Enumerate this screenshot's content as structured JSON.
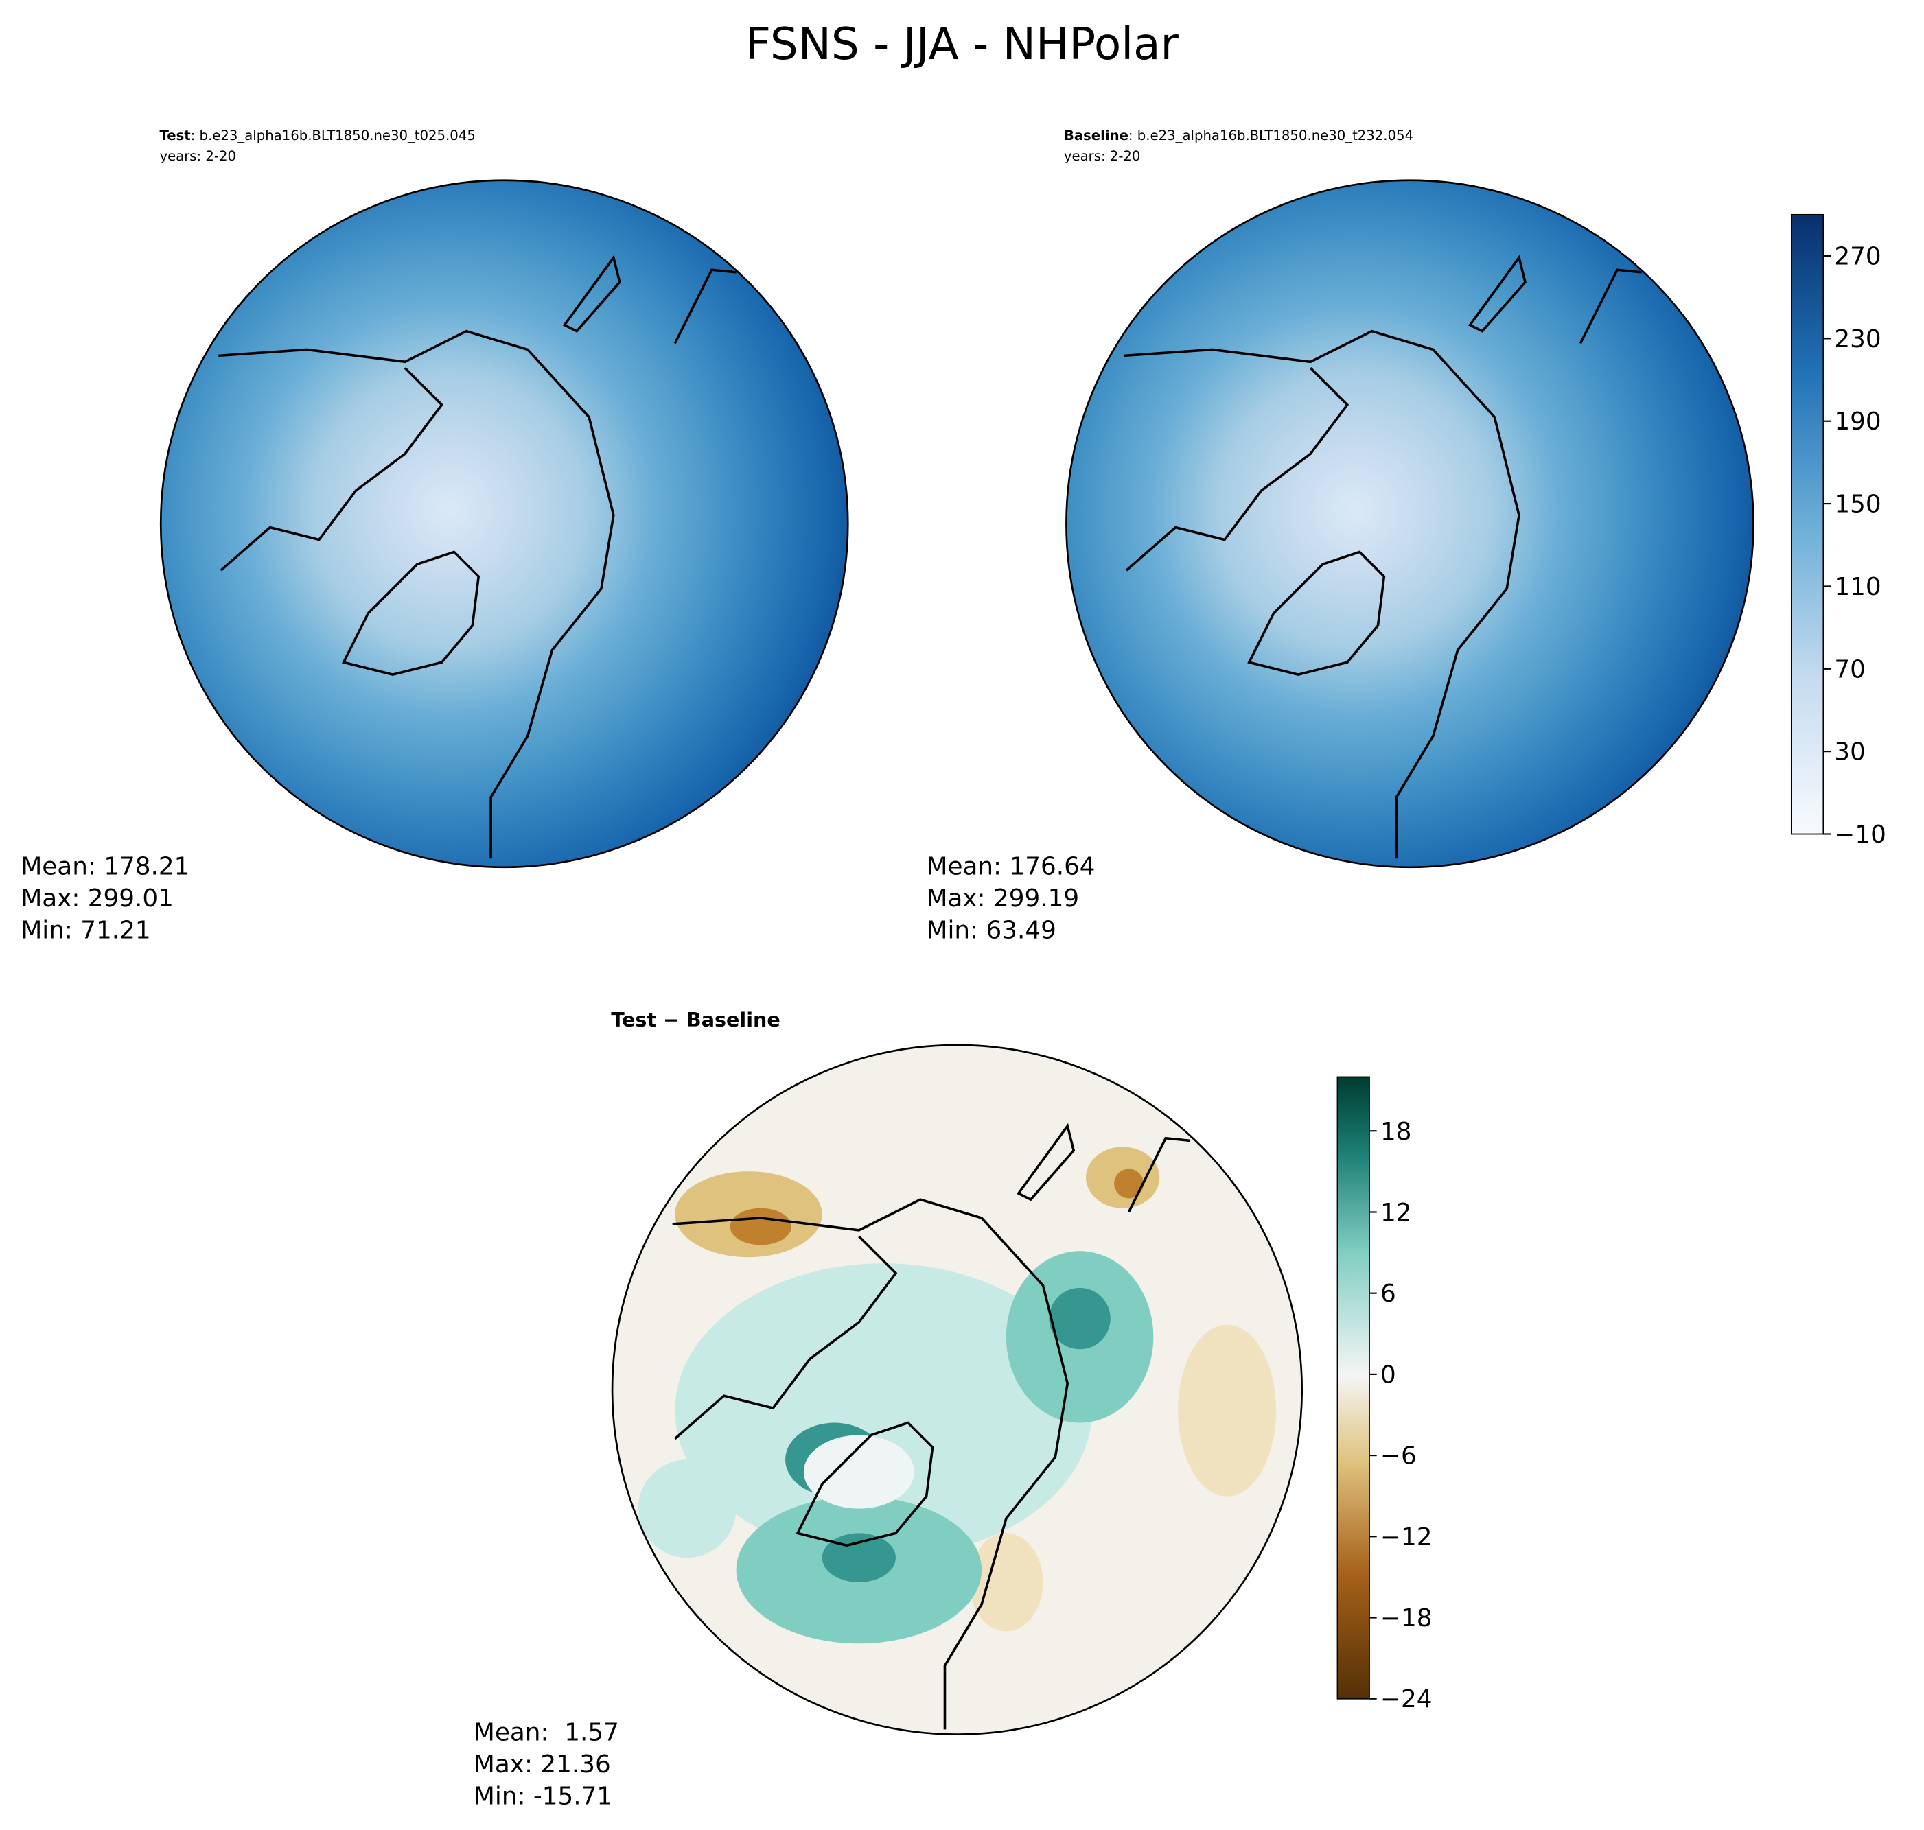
{
  "title": "FSNS - JJA - NHPolar",
  "panels": [
    {
      "label": "Test",
      "name": ": b.e23_alpha16b.BLT1850.ne30_t025.045",
      "years": "years: 2-20",
      "stats": [
        "Mean: 178.21",
        "Max: 299.01",
        "Min: 71.21"
      ]
    },
    {
      "label": "Baseline",
      "name": ": b.e23_alpha16b.BLT1850.ne30_t232.054",
      "years": "years: 2-20",
      "stats": [
        "Mean: 176.64",
        "Max: 299.19",
        "Min: 63.49"
      ]
    },
    {
      "label": "Test − Baseline",
      "stats": [
        "Mean:  1.57",
        "Max: 21.36",
        "Min: -15.71"
      ]
    }
  ],
  "colorbars": [
    {
      "lim": [
        -10,
        290
      ],
      "ticks": [
        {
          "value": -10,
          "label": "−10"
        },
        30,
        70,
        110,
        150,
        190,
        230,
        270
      ]
    },
    {
      "lim": [
        -24,
        22
      ],
      "ticks": [
        {
          "value": -24,
          "label": "−24"
        },
        {
          "value": -18,
          "label": "−18"
        },
        {
          "value": -12,
          "label": "−12"
        },
        {
          "value": -6,
          "label": "−6"
        },
        0,
        6,
        12,
        18
      ]
    }
  ]
}
